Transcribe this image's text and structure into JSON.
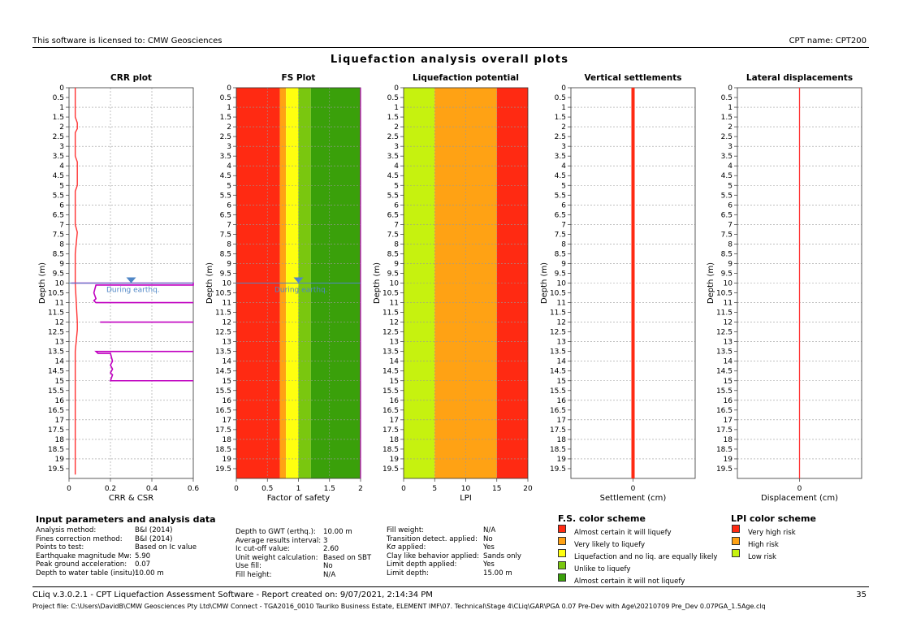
{
  "header": {
    "license": "This software is licensed to: CMW Geosciences",
    "cpt_name": "CPT name: CPT200"
  },
  "title": "Liquefaction analysis overall plots",
  "depth_label": "Depth (m)",
  "depth_ticks": [
    "0",
    "0.5",
    "1",
    "1.5",
    "2",
    "2.5",
    "3",
    "3.5",
    "4",
    "4.5",
    "5",
    "5.5",
    "6",
    "6.5",
    "7",
    "7.5",
    "8",
    "8.5",
    "9",
    "9.5",
    "10",
    "10.5",
    "11",
    "11.5",
    "12",
    "12.5",
    "13",
    "13.5",
    "14",
    "14.5",
    "15",
    "15.5",
    "16",
    "16.5",
    "17",
    "17.5",
    "18",
    "18.5",
    "19",
    "19.5"
  ],
  "colors": {
    "red": "#ff2a12",
    "orange": "#ffa214",
    "yellow": "#ffff0f",
    "light_green": "#7ac70f",
    "green": "#3aa00a",
    "lime": "#c6f20f",
    "crr": "#ff3333",
    "csr": "#c000c0",
    "water": "#4f86c6"
  },
  "chart_data": [
    {
      "id": "crr",
      "type": "line",
      "title": "CRR plot",
      "xlabel": "CRR & CSR",
      "ylabel": "Depth (m)",
      "xlim": [
        0,
        0.6
      ],
      "ylim": [
        0,
        20
      ],
      "xticks": [
        "0",
        "0.2",
        "0.4",
        "0.6"
      ],
      "grid": true,
      "gwt_label": "During earthq.",
      "gwt_depth": 10,
      "series": [
        {
          "key": "crr",
          "x": [
            0.03,
            0.03,
            0.04,
            0.04,
            0.03,
            0.03,
            0.04,
            0.04,
            0.03,
            0.03,
            0.04,
            0.03,
            0.03,
            0.04,
            0.04,
            0.03,
            0.03,
            0.03
          ],
          "y": [
            0,
            1.5,
            1.8,
            2.1,
            2.3,
            3.5,
            3.8,
            5.0,
            5.3,
            7.0,
            7.4,
            8.5,
            10.0,
            12.0,
            12.4,
            13.5,
            15.0,
            19.8
          ]
        },
        {
          "key": "csr_a",
          "x": [
            0.01,
            0.6,
            0.6,
            0.13,
            0.12,
            0.13,
            0.12,
            0.13,
            0.6
          ],
          "y": [
            10.0,
            10.0,
            10.1,
            10.1,
            10.5,
            10.8,
            10.9,
            11.0,
            11.0
          ]
        },
        {
          "key": "csr_b",
          "x": [
            0.15,
            0.6
          ],
          "y": [
            12.0,
            12.0
          ]
        },
        {
          "key": "csr_c",
          "x": [
            0.6,
            0.13,
            0.14,
            0.2,
            0.21,
            0.2,
            0.21,
            0.2,
            0.21,
            0.2,
            0.6
          ],
          "y": [
            13.5,
            13.5,
            13.6,
            13.6,
            14.0,
            14.2,
            14.4,
            14.6,
            14.7,
            15.0,
            15.0
          ]
        }
      ]
    },
    {
      "id": "fs",
      "type": "heatmap",
      "title": "FS Plot",
      "xlabel": "Factor of safety",
      "ylabel": "Depth (m)",
      "xlim": [
        0,
        2
      ],
      "ylim": [
        0,
        20
      ],
      "xticks": [
        "0",
        "0.5",
        "1",
        "1.5",
        "2"
      ],
      "grid": true,
      "gwt_label": "During earthq.",
      "gwt_depth": 10,
      "bands": [
        {
          "from": 0,
          "to": 0.7,
          "color": "red"
        },
        {
          "from": 0.7,
          "to": 0.8,
          "color": "orange"
        },
        {
          "from": 0.8,
          "to": 1.0,
          "color": "yellow"
        },
        {
          "from": 1.0,
          "to": 1.2,
          "color": "light_green"
        },
        {
          "from": 1.2,
          "to": 2.0,
          "color": "green"
        }
      ],
      "fs_line": {
        "x": 2.0,
        "y": [
          0,
          20
        ]
      }
    },
    {
      "id": "lpi",
      "type": "heatmap",
      "title": "Liquefaction potential",
      "xlabel": "LPI",
      "ylabel": "Depth (m)",
      "xlim": [
        0,
        20
      ],
      "ylim": [
        0,
        20
      ],
      "xticks": [
        "0",
        "5",
        "10",
        "15",
        "20"
      ],
      "grid": true,
      "bands": [
        {
          "from": 0,
          "to": 5,
          "color": "lime"
        },
        {
          "from": 5,
          "to": 15,
          "color": "orange"
        },
        {
          "from": 15,
          "to": 20,
          "color": "red"
        }
      ]
    },
    {
      "id": "settle",
      "type": "line",
      "title": "Vertical settlements",
      "xlabel": "Settlement (cm)",
      "ylabel": "Depth (m)",
      "xlim": [
        -1,
        1
      ],
      "ylim": [
        0,
        20
      ],
      "xticks": [
        "0"
      ],
      "grid": true,
      "series": [
        {
          "key": "settlement",
          "x": [
            0,
            0
          ],
          "y": [
            0,
            20
          ]
        }
      ]
    },
    {
      "id": "lateral",
      "type": "line",
      "title": "Lateral displacements",
      "xlabel": "Displacement (cm)",
      "ylabel": "Depth (m)",
      "xlim": [
        -1,
        1
      ],
      "ylim": [
        0,
        20
      ],
      "xticks": [
        "0"
      ],
      "grid": true,
      "series": [
        {
          "key": "displacement",
          "x": [
            0,
            0
          ],
          "y": [
            0,
            20
          ]
        }
      ]
    }
  ],
  "input_params": {
    "title": "Input parameters and analysis data",
    "col1": [
      {
        "label": "Analysis method:",
        "value": "B&I (2014)"
      },
      {
        "label": "Fines correction method:",
        "value": "B&I (2014)"
      },
      {
        "label": "Points to test:",
        "value": "Based on Ic value"
      },
      {
        "label": "Earthquake magnitude Mw:",
        "value": "5.90"
      },
      {
        "label": "Peak ground acceleration:",
        "value": "0.07"
      },
      {
        "label": "Depth to water table (insitu):",
        "value": "10.00 m"
      }
    ],
    "col2": [
      {
        "label": "Depth to GWT (erthq.):",
        "value": "10.00 m"
      },
      {
        "label": "Average results interval:",
        "value": "3"
      },
      {
        "label": "Ic cut-off value:",
        "value": "2.60"
      },
      {
        "label": "Unit weight calculation:",
        "value": "Based on SBT"
      },
      {
        "label": "Use fill:",
        "value": "No"
      },
      {
        "label": "Fill height:",
        "value": "N/A"
      }
    ],
    "col3": [
      {
        "label": "Fill weight:",
        "value": "N/A"
      },
      {
        "label": "Transition detect. applied:",
        "value": "No"
      },
      {
        "label": "Kσ applied:",
        "value": "Yes"
      },
      {
        "label": "Clay like behavior applied:",
        "value": "Sands only"
      },
      {
        "label": "Limit depth applied:",
        "value": "Yes"
      },
      {
        "label": "Limit depth:",
        "value": "15.00 m"
      }
    ]
  },
  "fs_scheme": {
    "title": "F.S. color scheme",
    "items": [
      {
        "color": "red",
        "label": "Almost certain it will liquefy"
      },
      {
        "color": "orange",
        "label": "Very likely to liquefy"
      },
      {
        "color": "yellow",
        "label": "Liquefaction and no liq. are equally likely"
      },
      {
        "color": "light_green",
        "label": "Unlike to liquefy"
      },
      {
        "color": "green",
        "label": "Almost certain it will not liquefy"
      }
    ]
  },
  "lpi_scheme": {
    "title": "LPI color scheme",
    "items": [
      {
        "color": "red",
        "label": "Very high risk"
      },
      {
        "color": "orange",
        "label": "High risk"
      },
      {
        "color": "lime",
        "label": "Low risk"
      }
    ]
  },
  "footer": {
    "report": "CLiq v.3.0.2.1 - CPT Liquefaction Assessment Software - Report created on: 9/07/2021, 2:14:34 PM",
    "page": "35",
    "project": "Project file: C:\\Users\\DavidB\\CMW Geosciences Pty Ltd\\CMW Connect - TGA2016_0010 Tauriko Business Estate, ELEMENT IMF\\07. Technical\\Stage 4\\CLiq\\GAR\\PGA 0.07 Pre-Dev with Age\\20210709 Pre_Dev 0.07PGA_1.5Age.clq"
  }
}
